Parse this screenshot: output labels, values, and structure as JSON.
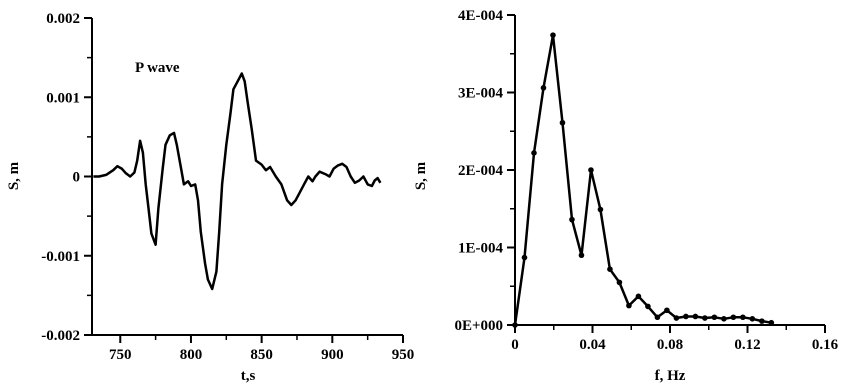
{
  "chart_data": [
    {
      "type": "line",
      "title": "",
      "annotation": "P wave",
      "xlabel": "t,s",
      "ylabel": "S, m",
      "xlim": [
        730,
        950
      ],
      "ylim": [
        -0.002,
        0.002
      ],
      "x_ticks": [
        750,
        800,
        850,
        900,
        950
      ],
      "x_tick_labels": [
        "750",
        "800",
        "850",
        "900",
        "950"
      ],
      "y_ticks": [
        -0.002,
        -0.001,
        0,
        0.001,
        0.002
      ],
      "y_tick_labels": [
        "-0.002",
        "-0.001",
        "0",
        "0.001",
        "0.002"
      ],
      "grid": false,
      "series": [
        {
          "x": [
            731,
            735,
            740,
            745,
            748,
            751,
            754,
            757,
            760,
            762,
            764,
            766,
            768,
            770,
            772,
            775,
            777,
            780,
            782,
            785,
            788,
            790,
            793,
            795,
            798,
            800,
            803,
            805,
            807,
            810,
            812,
            815,
            818,
            820,
            822,
            825,
            828,
            830,
            833,
            836,
            838,
            840,
            843,
            846,
            850,
            853,
            856,
            860,
            864,
            868,
            871,
            874,
            877,
            880,
            883,
            886,
            888,
            891,
            895,
            898,
            901,
            904,
            907,
            910,
            913,
            916,
            919,
            922,
            925,
            928,
            930,
            932,
            934
          ],
          "y": [
            0.0,
            0.0,
            2e-05,
            8e-05,
            0.00013,
            0.0001,
            4e-05,
            0.0,
            5e-05,
            0.0002,
            0.00045,
            0.0003,
            -0.0001,
            -0.0004,
            -0.00072,
            -0.00086,
            -0.0004,
            0.0001,
            0.0004,
            0.00052,
            0.00055,
            0.0004,
            0.0001,
            -0.0001,
            -6e-05,
            -0.00012,
            -0.0001,
            -0.0003,
            -0.0007,
            -0.0011,
            -0.0013,
            -0.00142,
            -0.0012,
            -0.0007,
            -0.0001,
            0.0004,
            0.0008,
            0.0011,
            0.0012,
            0.0013,
            0.0012,
            0.00095,
            0.0006,
            0.0002,
            0.00015,
            8e-05,
            0.00012,
            0.0,
            -0.0001,
            -0.0003,
            -0.00036,
            -0.0003,
            -0.0002,
            -0.0001,
            0.0,
            -6e-05,
            0.0,
            6e-05,
            3e-05,
            0.0,
            0.0001,
            0.00014,
            0.00016,
            0.00012,
            0.0,
            -8e-05,
            -5e-05,
            0.0,
            -0.0001,
            -0.00012,
            -5e-05,
            -2e-05,
            -8e-05
          ]
        }
      ]
    },
    {
      "type": "line",
      "title": "",
      "xlabel": "f, Hz",
      "ylabel": "S, m",
      "xlim": [
        0,
        0.16
      ],
      "ylim": [
        0,
        0.0004
      ],
      "x_ticks": [
        0,
        0.04,
        0.08,
        0.12,
        0.16
      ],
      "x_tick_labels": [
        "0",
        "0.04",
        "0.08",
        "0.12",
        "0.16"
      ],
      "y_ticks": [
        0,
        0.0001,
        0.0002,
        0.0003,
        0.0004
      ],
      "y_tick_labels": [
        "0E+000",
        "1E-004",
        "2E-004",
        "3E-004",
        "4E-004"
      ],
      "grid": false,
      "markers": true,
      "series": [
        {
          "x": [
            0.0,
            0.0049,
            0.0098,
            0.0147,
            0.0196,
            0.0245,
            0.0294,
            0.0343,
            0.0392,
            0.0441,
            0.049,
            0.0539,
            0.0588,
            0.0637,
            0.0686,
            0.0735,
            0.0784,
            0.0833,
            0.0882,
            0.0931,
            0.098,
            0.1029,
            0.1078,
            0.1127,
            0.1176,
            0.1225,
            0.1274,
            0.1323
          ],
          "y": [
            0.0,
            8.7e-05,
            0.000222,
            0.000306,
            0.000374,
            0.000261,
            0.000136,
            9e-05,
            0.0002,
            0.000149,
            7.2e-05,
            5.5e-05,
            2.5e-05,
            3.7e-05,
            2.4e-05,
            1e-05,
            1.9e-05,
            9e-06,
            1.1e-05,
            1.1e-05,
            9e-06,
            1e-05,
            8e-06,
            1e-05,
            1e-05,
            8e-06,
            5e-06,
            3e-06
          ]
        }
      ]
    }
  ]
}
